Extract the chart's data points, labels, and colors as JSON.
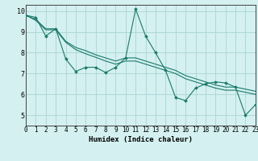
{
  "xlabel": "Humidex (Indice chaleur)",
  "bg_color": "#d4f0f0",
  "plot_bg_color": "#d4f0f0",
  "grid_color": "#aad4d4",
  "line_color": "#1a7a6a",
  "x_data": [
    0,
    1,
    2,
    3,
    4,
    5,
    6,
    7,
    8,
    9,
    10,
    11,
    12,
    13,
    14,
    15,
    16,
    17,
    18,
    19,
    20,
    21,
    22,
    23
  ],
  "y_main": [
    9.8,
    9.7,
    8.8,
    9.15,
    7.7,
    7.1,
    7.3,
    7.3,
    7.05,
    7.3,
    7.75,
    10.1,
    8.8,
    8.0,
    7.15,
    5.85,
    5.7,
    6.3,
    6.5,
    6.6,
    6.55,
    6.35,
    5.0,
    5.5
  ],
  "y_trend1": [
    9.8,
    9.6,
    9.15,
    9.15,
    8.55,
    8.25,
    8.1,
    7.9,
    7.75,
    7.6,
    7.75,
    7.75,
    7.6,
    7.45,
    7.3,
    7.15,
    6.9,
    6.75,
    6.6,
    6.45,
    6.35,
    6.35,
    6.25,
    6.15
  ],
  "y_trend2": [
    9.8,
    9.55,
    9.1,
    9.1,
    8.5,
    8.15,
    7.95,
    7.78,
    7.6,
    7.45,
    7.6,
    7.6,
    7.45,
    7.3,
    7.15,
    7.0,
    6.75,
    6.6,
    6.45,
    6.3,
    6.2,
    6.2,
    6.1,
    6.0
  ],
  "xlim": [
    0,
    23
  ],
  "ylim": [
    4.5,
    10.3
  ],
  "yticks": [
    5,
    6,
    7,
    8,
    9,
    10
  ],
  "xticks": [
    0,
    1,
    2,
    3,
    4,
    5,
    6,
    7,
    8,
    9,
    10,
    11,
    12,
    13,
    14,
    15,
    16,
    17,
    18,
    19,
    20,
    21,
    22,
    23
  ],
  "markersize": 2.0,
  "linewidth": 0.8,
  "xlabel_fontsize": 6.5,
  "tick_fontsize": 5.5
}
